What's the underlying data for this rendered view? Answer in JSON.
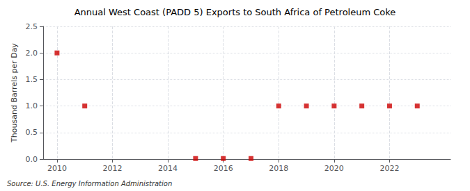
{
  "chart_data": {
    "type": "scatter",
    "title": "Annual West Coast (PADD 5) Exports to South Africa of Petroleum Coke",
    "ylabel": "Thousand Barrels per Day",
    "source": "Source: U.S. Energy Information Administration",
    "x": [
      2010,
      2011,
      2015,
      2016,
      2017,
      2018,
      2019,
      2020,
      2021,
      2022,
      2023
    ],
    "values": [
      2.0,
      1.0,
      0.01,
      0.01,
      0.01,
      1.0,
      1.0,
      1.0,
      1.0,
      1.0,
      1.0
    ],
    "color": "#cc0000",
    "marker": "square",
    "xlim": [
      2009.5,
      2024.2
    ],
    "xticks": [
      2010,
      2012,
      2014,
      2016,
      2018,
      2020,
      2022
    ],
    "ylim": [
      0.0,
      2.5
    ],
    "yticks": [
      {
        "value": 0.0,
        "label": "0.0"
      },
      0.5,
      {
        "value": 1.0,
        "label": "1.0"
      },
      1.5,
      {
        "value": 2.0,
        "label": "2.0"
      },
      2.5
    ],
    "grid": true
  }
}
